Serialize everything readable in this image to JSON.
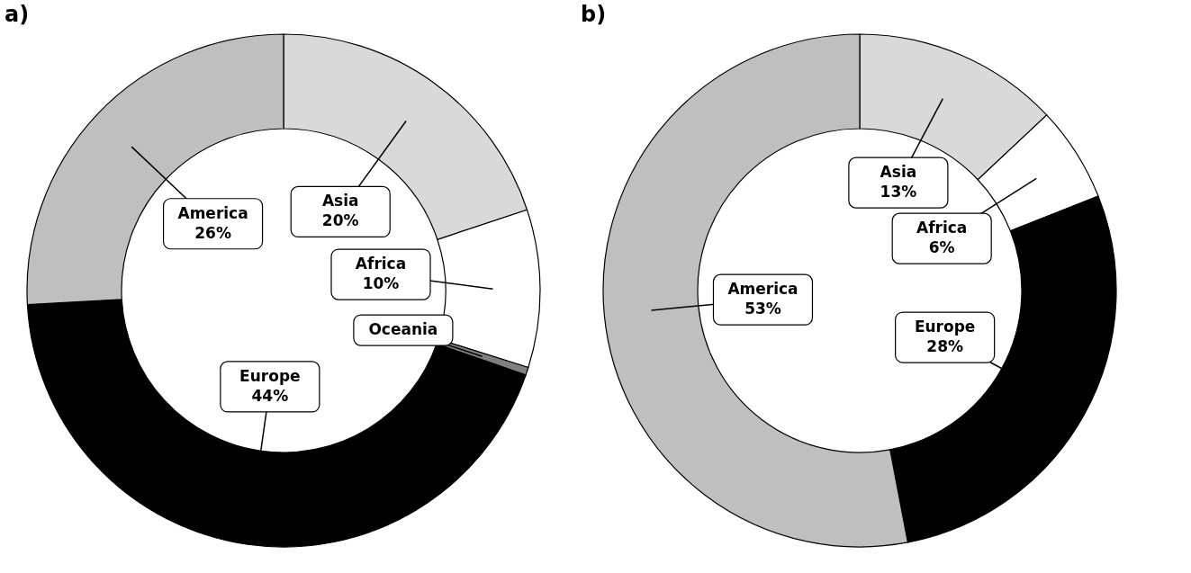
{
  "chart_data": [
    {
      "type": "donut",
      "title": "a)",
      "categories": [
        "Asia",
        "Africa",
        "Oceania",
        "Europe",
        "America"
      ],
      "values": [
        20,
        10,
        0.5,
        44,
        26
      ],
      "colors": [
        "#d9d9d9",
        "#ffffff",
        "#7f7f7f",
        "#000000",
        "#bfbfbf"
      ],
      "value_labels": [
        "20%",
        "10%",
        null,
        "44%",
        "26%"
      ],
      "legend": false
    },
    {
      "type": "donut",
      "title": "b)",
      "categories": [
        "Asia",
        "Africa",
        "Europe",
        "America"
      ],
      "values": [
        13,
        6,
        28,
        53
      ],
      "colors": [
        "#d9d9d9",
        "#ffffff",
        "#000000",
        "#bfbfbf"
      ],
      "value_labels": [
        "13%",
        "6%",
        "28%",
        "53%"
      ],
      "legend": false
    }
  ]
}
